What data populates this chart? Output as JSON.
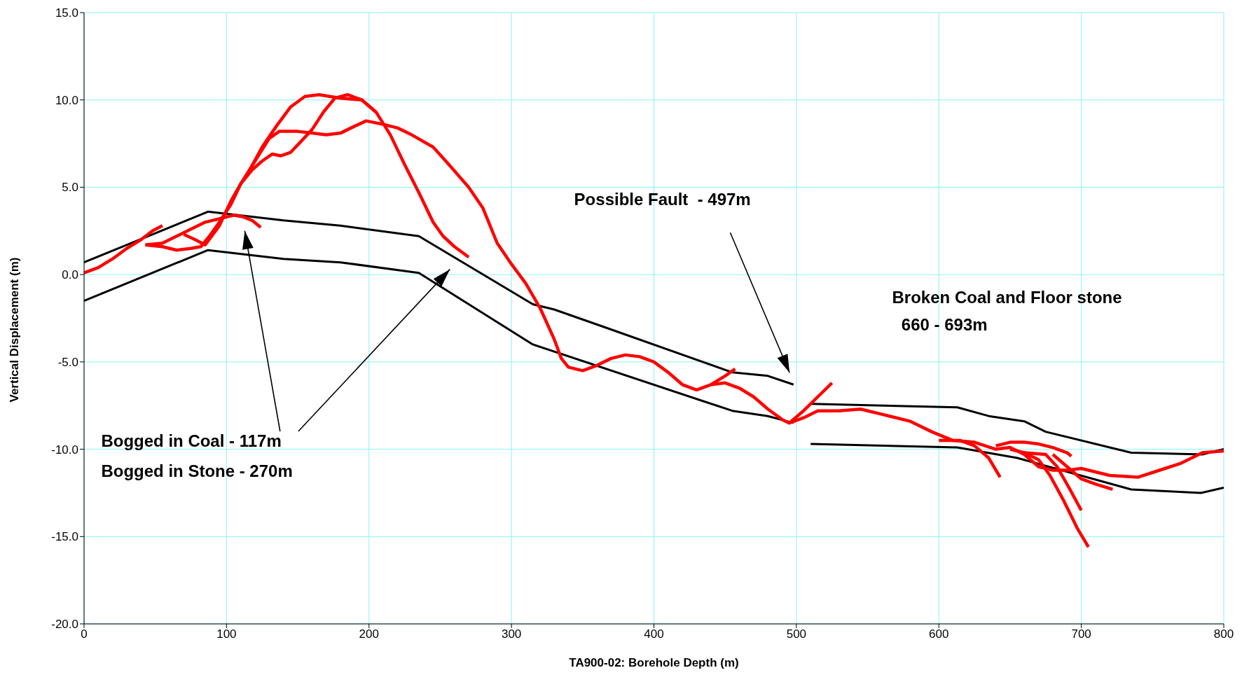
{
  "chart_data": {
    "type": "line",
    "xlabel": "TA900-02:  Borehole Depth (m)",
    "ylabel": "Vertical Displacement (m)",
    "xlim": [
      0,
      800
    ],
    "xticks": [
      0,
      100,
      200,
      300,
      400,
      500,
      600,
      700,
      800
    ],
    "ylim": [
      -20,
      15
    ],
    "yticks": [
      {
        "value": -20,
        "label": "-20.0"
      },
      {
        "value": -15,
        "label": "-15.0"
      },
      {
        "value": -10,
        "label": "-10.0"
      },
      {
        "value": -5,
        "label": "-5.0"
      },
      {
        "value": 0,
        "label": "0.0"
      },
      {
        "value": 5,
        "label": "5.0"
      },
      {
        "value": 10,
        "label": "10.0"
      },
      {
        "value": 15,
        "label": "15.0"
      }
    ],
    "grid": true,
    "marker": "none",
    "line_style": "solid",
    "series": [
      {
        "color": "#000000",
        "x": [
          0,
          87,
          140,
          180,
          235,
          315,
          330,
          365,
          455,
          480,
          498
        ],
        "values": [
          0.7,
          3.6,
          3.1,
          2.8,
          2.2,
          -1.7,
          -2.0,
          -3.0,
          -5.6,
          -5.8,
          -6.3
        ]
      },
      {
        "color": "#000000",
        "x": [
          0,
          87,
          140,
          180,
          235,
          315,
          455,
          480,
          498
        ],
        "values": [
          -1.5,
          1.4,
          0.9,
          0.7,
          0.1,
          -4.0,
          -7.8,
          -8.1,
          -8.5
        ]
      },
      {
        "color": "#000000",
        "x": [
          510,
          613,
          635,
          660,
          675,
          735,
          785,
          800
        ],
        "values": [
          -7.4,
          -7.6,
          -8.1,
          -8.4,
          -9.0,
          -10.2,
          -10.3,
          -10.0
        ]
      },
      {
        "color": "#000000",
        "x": [
          510,
          613,
          655,
          735,
          784,
          800
        ],
        "values": [
          -9.7,
          -9.9,
          -10.5,
          -12.3,
          -12.5,
          -12.2
        ]
      },
      {
        "color": "#ff0000",
        "x": [
          0,
          10,
          20,
          30,
          40,
          48,
          55
        ],
        "values": [
          0.1,
          0.4,
          0.9,
          1.5,
          2.0,
          2.5,
          2.8
        ]
      },
      {
        "color": "#ff0000",
        "x": [
          43,
          55,
          65,
          75,
          85,
          95,
          105,
          112,
          118,
          124
        ],
        "values": [
          1.7,
          1.8,
          2.2,
          2.6,
          3.0,
          3.2,
          3.4,
          3.3,
          3.1,
          2.7
        ]
      },
      {
        "color": "#ff0000",
        "x": [
          43,
          55,
          65,
          75,
          82,
          88,
          95,
          103,
          110,
          118,
          125,
          132,
          138,
          145,
          152,
          160,
          168,
          176,
          185,
          195,
          205,
          215,
          225,
          235,
          245,
          252,
          260,
          270
        ],
        "values": [
          1.7,
          1.6,
          1.4,
          1.5,
          1.6,
          2.2,
          3.0,
          4.0,
          5.2,
          6.0,
          6.5,
          6.9,
          6.8,
          7.0,
          7.6,
          8.3,
          9.3,
          10.1,
          10.3,
          10.0,
          9.3,
          8.0,
          6.3,
          4.7,
          3.0,
          2.2,
          1.6,
          1.0
        ]
      },
      {
        "color": "#ff0000",
        "x": [
          115,
          125,
          135,
          145,
          155,
          165,
          180,
          195,
          205
        ],
        "values": [
          5.8,
          7.3,
          8.5,
          9.6,
          10.2,
          10.3,
          10.1,
          10.0,
          9.3
        ]
      },
      {
        "color": "#ff0000",
        "x": [
          70,
          78,
          85,
          95,
          103,
          110,
          120,
          130,
          137,
          150,
          160,
          170,
          180,
          190,
          198,
          210,
          220,
          230,
          245,
          255,
          270,
          280,
          290,
          300,
          310,
          320,
          330,
          335,
          340,
          350,
          360,
          370,
          380,
          390,
          400,
          410,
          420,
          430,
          440,
          450,
          460,
          470,
          480,
          490,
          495,
          505,
          515,
          530,
          545,
          560,
          580,
          595,
          610,
          625,
          640,
          650,
          660,
          670,
          680,
          690,
          700,
          710,
          720,
          740,
          755,
          770,
          785,
          800
        ],
        "values": [
          2.3,
          2.0,
          1.7,
          2.8,
          4.2,
          5.2,
          6.5,
          7.8,
          8.2,
          8.2,
          8.1,
          8.0,
          8.1,
          8.5,
          8.8,
          8.6,
          8.4,
          8.0,
          7.3,
          6.4,
          5.0,
          3.8,
          1.8,
          0.6,
          -0.5,
          -1.9,
          -3.7,
          -4.8,
          -5.3,
          -5.5,
          -5.2,
          -4.8,
          -4.6,
          -4.7,
          -5.0,
          -5.6,
          -6.3,
          -6.6,
          -6.3,
          -6.2,
          -6.5,
          -7.0,
          -7.7,
          -8.3,
          -8.5,
          -8.2,
          -7.8,
          -7.8,
          -7.7,
          -8.0,
          -8.4,
          -9.0,
          -9.5,
          -9.6,
          -10.0,
          -9.9,
          -10.3,
          -11.0,
          -11.2,
          -11.2,
          -11.1,
          -11.3,
          -11.5,
          -11.6,
          -11.2,
          -10.8,
          -10.2,
          -10.1
        ]
      },
      {
        "color": "#ff0000",
        "x": [
          440,
          450,
          457
        ],
        "values": [
          -6.3,
          -5.8,
          -5.4
        ]
      },
      {
        "color": "#ff0000",
        "x": [
          495,
          505,
          515,
          525
        ],
        "values": [
          -8.5,
          -7.8,
          -7.0,
          -6.2
        ]
      },
      {
        "color": "#ff0000",
        "x": [
          600,
          615,
          625,
          635,
          643
        ],
        "values": [
          -9.5,
          -9.5,
          -9.8,
          -10.5,
          -11.6
        ]
      },
      {
        "color": "#ff0000",
        "x": [
          640,
          650,
          660,
          670,
          680,
          690,
          693
        ],
        "values": [
          -9.8,
          -9.6,
          -9.6,
          -9.7,
          -9.9,
          -10.2,
          -10.4
        ]
      },
      {
        "color": "#ff0000",
        "x": [
          650,
          660,
          670,
          678,
          688,
          697,
          705
        ],
        "values": [
          -10.0,
          -10.2,
          -10.6,
          -11.5,
          -13.0,
          -14.5,
          -15.6
        ]
      },
      {
        "color": "#ff0000",
        "x": [
          660,
          675,
          683,
          692,
          700
        ],
        "values": [
          -10.2,
          -10.3,
          -11.0,
          -12.3,
          -13.5
        ]
      },
      {
        "color": "#ff0000",
        "x": [
          680,
          690,
          700,
          710,
          722
        ],
        "values": [
          -10.3,
          -11.0,
          -11.7,
          -12.0,
          -12.3
        ]
      }
    ],
    "annotations": [
      "Bogged in Coal - 117m",
      "Bogged in Stone - 270m",
      "Possible Fault  - 497m",
      "Broken Coal and Floor stone",
      "  660 - 693m"
    ]
  }
}
